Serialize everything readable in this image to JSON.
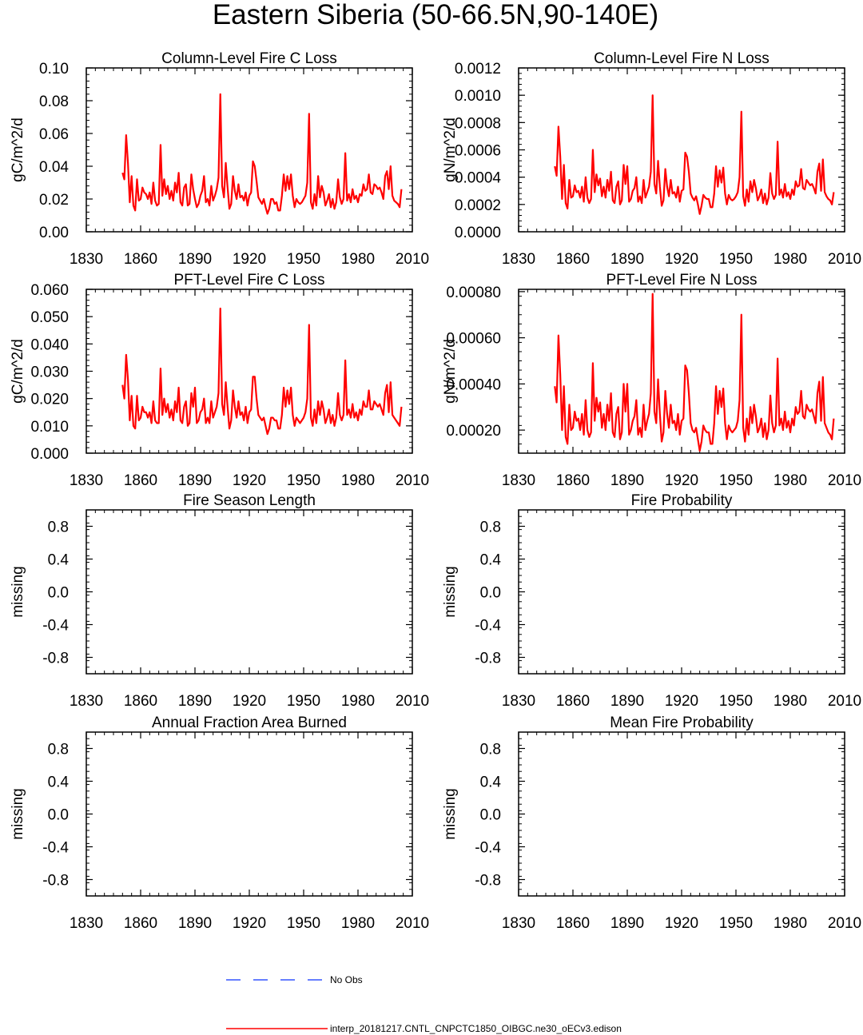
{
  "figure": {
    "title": "Eastern Siberia (50-66.5N,90-140E)"
  },
  "legend": {
    "entries": [
      {
        "label": "No Obs",
        "color": "#3355ff",
        "style": "dashed"
      },
      {
        "label": "interp_20181217.CNTL_CNPCTC1850_OIBGC.ne30_oECv3.edison",
        "color": "#ff0000",
        "style": "solid"
      }
    ]
  },
  "chart_data": [
    {
      "id": "col-c",
      "type": "line",
      "title": "Column-Level Fire C Loss",
      "ylabel": "gC/m^2/d",
      "xlabel": "",
      "xlim": [
        1830,
        2010
      ],
      "ylim": [
        0,
        0.1
      ],
      "xticks": [
        "1830",
        "1860",
        "1890",
        "1920",
        "1950",
        "1980",
        "2010"
      ],
      "yticks": [
        "0.00",
        "0.02",
        "0.04",
        "0.06",
        "0.08",
        "0.10"
      ],
      "series": [
        {
          "name": "interp_20181217.CNTL_CNPCTC1850_OIBGC.ne30_oECv3.edison",
          "color": "#ff0000",
          "x_start": 1850,
          "x_step": 1,
          "values": [
            0.036,
            0.032,
            0.059,
            0.042,
            0.018,
            0.034,
            0.016,
            0.013,
            0.032,
            0.019,
            0.02,
            0.027,
            0.024,
            0.023,
            0.02,
            0.024,
            0.017,
            0.03,
            0.019,
            0.016,
            0.017,
            0.053,
            0.022,
            0.032,
            0.023,
            0.028,
            0.02,
            0.025,
            0.019,
            0.03,
            0.024,
            0.036,
            0.018,
            0.016,
            0.027,
            0.029,
            0.016,
            0.017,
            0.035,
            0.026,
            0.02,
            0.015,
            0.017,
            0.022,
            0.025,
            0.034,
            0.018,
            0.02,
            0.016,
            0.028,
            0.019,
            0.022,
            0.026,
            0.033,
            0.084,
            0.028,
            0.021,
            0.042,
            0.027,
            0.014,
            0.017,
            0.034,
            0.025,
            0.02,
            0.029,
            0.021,
            0.022,
            0.019,
            0.024,
            0.016,
            0.022,
            0.024,
            0.043,
            0.04,
            0.031,
            0.021,
            0.019,
            0.017,
            0.02,
            0.015,
            0.011,
            0.014,
            0.02,
            0.02,
            0.017,
            0.018,
            0.013,
            0.013,
            0.022,
            0.035,
            0.025,
            0.034,
            0.026,
            0.035,
            0.022,
            0.015,
            0.02,
            0.018,
            0.017,
            0.018,
            0.02,
            0.022,
            0.03,
            0.072,
            0.018,
            0.014,
            0.023,
            0.016,
            0.034,
            0.021,
            0.028,
            0.024,
            0.016,
            0.019,
            0.023,
            0.015,
            0.02,
            0.014,
            0.018,
            0.032,
            0.021,
            0.017,
            0.02,
            0.048,
            0.019,
            0.023,
            0.018,
            0.026,
            0.02,
            0.022,
            0.018,
            0.023,
            0.022,
            0.029,
            0.025,
            0.026,
            0.035,
            0.024,
            0.023,
            0.029,
            0.028,
            0.026,
            0.027,
            0.024,
            0.02,
            0.034,
            0.037,
            0.026,
            0.04,
            0.022,
            0.019,
            0.018,
            0.017,
            0.015,
            0.026
          ]
        }
      ]
    },
    {
      "id": "col-n",
      "type": "line",
      "title": "Column-Level Fire N Loss",
      "ylabel": "gN/m^2/d",
      "xlabel": "",
      "xlim": [
        1830,
        2010
      ],
      "ylim": [
        0,
        0.0012
      ],
      "xticks": [
        "1830",
        "1860",
        "1890",
        "1920",
        "1950",
        "1980",
        "2010"
      ],
      "yticks": [
        "0.0000",
        "0.0002",
        "0.0004",
        "0.0006",
        "0.0008",
        "0.0010",
        "0.0012"
      ],
      "series": [
        {
          "name": "interp_20181217.CNTL_CNPCTC1850_OIBGC.ne30_oECv3.edison",
          "color": "#ff0000",
          "x_start": 1850,
          "x_step": 1,
          "values": [
            0.00048,
            0.00041,
            0.00077,
            0.00055,
            0.00024,
            0.00049,
            0.00021,
            0.00017,
            0.00038,
            0.00025,
            0.00026,
            0.00034,
            0.00029,
            0.0003,
            0.00025,
            0.00033,
            0.00022,
            0.0004,
            0.00025,
            0.00021,
            0.00024,
            0.0006,
            0.00029,
            0.00042,
            0.00034,
            0.00039,
            0.00026,
            0.00033,
            0.00025,
            0.00038,
            0.0003,
            0.00044,
            0.00023,
            0.00021,
            0.00033,
            0.00037,
            0.0002,
            0.00023,
            0.00049,
            0.00035,
            0.00048,
            0.00022,
            0.00024,
            0.0003,
            0.00032,
            0.0004,
            0.00022,
            0.00026,
            0.00021,
            0.00038,
            0.00025,
            0.00029,
            0.00033,
            0.00044,
            0.001,
            0.00035,
            0.00028,
            0.00052,
            0.00033,
            0.00019,
            0.00023,
            0.00046,
            0.00033,
            0.00026,
            0.00038,
            0.00028,
            0.00029,
            0.00025,
            0.00033,
            0.00022,
            0.0003,
            0.00031,
            0.00058,
            0.00055,
            0.00044,
            0.00028,
            0.00025,
            0.00023,
            0.00026,
            0.0002,
            0.00013,
            0.00019,
            0.00027,
            0.00025,
            0.00024,
            0.00024,
            0.00018,
            0.00018,
            0.00028,
            0.00048,
            0.00033,
            0.00045,
            0.00036,
            0.00047,
            0.00028,
            0.0002,
            0.00027,
            0.00024,
            0.00023,
            0.00024,
            0.00026,
            0.00029,
            0.0004,
            0.00088,
            0.00026,
            0.00019,
            0.00031,
            0.00022,
            0.00037,
            0.00029,
            0.00038,
            0.00032,
            0.00023,
            0.00026,
            0.00031,
            0.00021,
            0.00028,
            0.0002,
            0.00025,
            0.00043,
            0.00028,
            0.00024,
            0.00027,
            0.00066,
            0.00027,
            0.00031,
            0.00025,
            0.00035,
            0.00026,
            0.00029,
            0.00024,
            0.00031,
            0.00027,
            0.00037,
            0.00033,
            0.00034,
            0.00046,
            0.00032,
            0.00031,
            0.00038,
            0.00036,
            0.00034,
            0.00035,
            0.00032,
            0.00028,
            0.00044,
            0.0005,
            0.0003,
            0.00053,
            0.00029,
            0.00026,
            0.00024,
            0.00023,
            0.0002,
            0.00029
          ]
        }
      ]
    },
    {
      "id": "pft-c",
      "type": "line",
      "title": "PFT-Level Fire C Loss",
      "ylabel": "gC/m^2/d",
      "xlabel": "",
      "xlim": [
        1830,
        2010
      ],
      "ylim": [
        0,
        0.06
      ],
      "xticks": [
        "1830",
        "1860",
        "1890",
        "1920",
        "1950",
        "1980",
        "2010"
      ],
      "yticks": [
        "0.000",
        "0.010",
        "0.020",
        "0.030",
        "0.040",
        "0.050",
        "0.060"
      ],
      "series": [
        {
          "name": "interp_20181217.CNTL_CNPCTC1850_OIBGC.ne30_oECv3.edison",
          "color": "#ff0000",
          "x_start": 1850,
          "x_step": 1,
          "values": [
            0.025,
            0.02,
            0.036,
            0.027,
            0.012,
            0.021,
            0.01,
            0.009,
            0.021,
            0.012,
            0.013,
            0.017,
            0.015,
            0.015,
            0.013,
            0.015,
            0.011,
            0.019,
            0.012,
            0.011,
            0.011,
            0.031,
            0.014,
            0.02,
            0.015,
            0.018,
            0.013,
            0.016,
            0.012,
            0.019,
            0.015,
            0.024,
            0.012,
            0.011,
            0.017,
            0.019,
            0.01,
            0.011,
            0.022,
            0.017,
            0.024,
            0.011,
            0.012,
            0.015,
            0.016,
            0.02,
            0.011,
            0.013,
            0.011,
            0.019,
            0.013,
            0.015,
            0.017,
            0.022,
            0.053,
            0.018,
            0.014,
            0.026,
            0.017,
            0.009,
            0.012,
            0.023,
            0.017,
            0.013,
            0.019,
            0.014,
            0.015,
            0.012,
            0.017,
            0.011,
            0.015,
            0.016,
            0.028,
            0.028,
            0.02,
            0.014,
            0.013,
            0.012,
            0.013,
            0.01,
            0.007,
            0.009,
            0.013,
            0.013,
            0.012,
            0.012,
            0.009,
            0.009,
            0.014,
            0.024,
            0.017,
            0.023,
            0.018,
            0.024,
            0.014,
            0.01,
            0.013,
            0.012,
            0.011,
            0.012,
            0.013,
            0.015,
            0.02,
            0.047,
            0.013,
            0.01,
            0.016,
            0.011,
            0.019,
            0.014,
            0.019,
            0.016,
            0.011,
            0.013,
            0.016,
            0.011,
            0.014,
            0.01,
            0.013,
            0.022,
            0.014,
            0.012,
            0.014,
            0.034,
            0.014,
            0.016,
            0.013,
            0.018,
            0.013,
            0.015,
            0.012,
            0.016,
            0.014,
            0.019,
            0.017,
            0.017,
            0.023,
            0.016,
            0.016,
            0.019,
            0.018,
            0.017,
            0.018,
            0.016,
            0.014,
            0.022,
            0.025,
            0.015,
            0.026,
            0.014,
            0.013,
            0.012,
            0.011,
            0.01,
            0.017
          ]
        }
      ]
    },
    {
      "id": "pft-n",
      "type": "line",
      "title": "PFT-Level Fire N Loss",
      "ylabel": "gN/m^2/d",
      "xlabel": "",
      "xlim": [
        1830,
        2010
      ],
      "ylim": [
        0.0001,
        0.00081
      ],
      "xticks": [
        "1830",
        "1860",
        "1890",
        "1920",
        "1950",
        "1980",
        "2010"
      ],
      "ytick_values": [
        0.0002,
        0.0004,
        0.0006,
        0.0008
      ],
      "yticks": [
        "0.00020",
        "0.00040",
        "0.00060",
        "0.00080"
      ],
      "series": [
        {
          "name": "interp_20181217.CNTL_CNPCTC1850_OIBGC.ne30_oECv3.edison",
          "color": "#ff0000",
          "x_start": 1850,
          "x_step": 1,
          "values": [
            0.00039,
            0.00032,
            0.00061,
            0.00044,
            0.0002,
            0.00039,
            0.00017,
            0.00014,
            0.00031,
            0.0002,
            0.00021,
            0.00028,
            0.00024,
            0.00025,
            0.0002,
            0.00027,
            0.00018,
            0.00033,
            0.0002,
            0.00017,
            0.00019,
            0.00049,
            0.00024,
            0.00034,
            0.00028,
            0.00032,
            0.00021,
            0.00027,
            0.0002,
            0.00031,
            0.00024,
            0.00036,
            0.00019,
            0.00017,
            0.00027,
            0.0003,
            0.00016,
            0.00019,
            0.0004,
            0.00028,
            0.0004,
            0.00018,
            0.0002,
            0.00024,
            0.00026,
            0.00033,
            0.00018,
            0.00021,
            0.00017,
            0.00031,
            0.0002,
            0.00024,
            0.00027,
            0.00036,
            0.00079,
            0.00028,
            0.00023,
            0.00042,
            0.00027,
            0.00015,
            0.00019,
            0.00037,
            0.00027,
            0.00021,
            0.00031,
            0.00023,
            0.00024,
            0.0002,
            0.00027,
            0.00018,
            0.00024,
            0.00025,
            0.00048,
            0.00046,
            0.00036,
            0.00023,
            0.0002,
            0.00019,
            0.00021,
            0.00016,
            0.00011,
            0.00015,
            0.00022,
            0.0002,
            0.00019,
            0.00019,
            0.00014,
            0.00014,
            0.00023,
            0.00039,
            0.00027,
            0.00037,
            0.0003,
            0.00038,
            0.00023,
            0.00016,
            0.00022,
            0.0002,
            0.00019,
            0.0002,
            0.00021,
            0.00024,
            0.00033,
            0.0007,
            0.00021,
            0.00015,
            0.00025,
            0.00018,
            0.0003,
            0.00023,
            0.00031,
            0.00026,
            0.00019,
            0.00021,
            0.00025,
            0.00017,
            0.00023,
            0.00016,
            0.0002,
            0.00035,
            0.00023,
            0.00019,
            0.00022,
            0.00051,
            0.00022,
            0.00025,
            0.0002,
            0.00028,
            0.00021,
            0.00024,
            0.00019,
            0.00025,
            0.00022,
            0.0003,
            0.00027,
            0.00028,
            0.00037,
            0.00026,
            0.00025,
            0.00031,
            0.00029,
            0.00028,
            0.00029,
            0.00026,
            0.00023,
            0.00036,
            0.00041,
            0.00024,
            0.00043,
            0.00023,
            0.00021,
            0.00019,
            0.00018,
            0.00016,
            0.00025
          ]
        }
      ]
    },
    {
      "id": "fsl",
      "type": "line",
      "title": "Fire Season Length",
      "ylabel": "missing",
      "xlabel": "",
      "xlim": [
        1830,
        2010
      ],
      "ylim": [
        -1,
        1
      ],
      "xticks": [
        "1830",
        "1860",
        "1890",
        "1920",
        "1950",
        "1980",
        "2010"
      ],
      "ytick_values": [
        0.8,
        0.4,
        0.0,
        -0.4,
        -0.8
      ],
      "yticks": [
        "0.8",
        "0.4",
        "0.0",
        "-0.4",
        "-0.8"
      ],
      "series": []
    },
    {
      "id": "fp",
      "type": "line",
      "title": "Fire Probability",
      "ylabel": "missing",
      "xlabel": "",
      "xlim": [
        1830,
        2010
      ],
      "ylim": [
        -1,
        1
      ],
      "xticks": [
        "1830",
        "1860",
        "1890",
        "1920",
        "1950",
        "1980",
        "2010"
      ],
      "ytick_values": [
        0.8,
        0.4,
        0.0,
        -0.4,
        -0.8
      ],
      "yticks": [
        "0.8",
        "0.4",
        "0.0",
        "-0.4",
        "-0.8"
      ],
      "series": []
    },
    {
      "id": "afab",
      "type": "line",
      "title": "Annual Fraction Area Burned",
      "ylabel": "missing",
      "xlabel": "",
      "xlim": [
        1830,
        2010
      ],
      "ylim": [
        -1,
        1
      ],
      "xticks": [
        "1830",
        "1860",
        "1890",
        "1920",
        "1950",
        "1980",
        "2010"
      ],
      "ytick_values": [
        0.8,
        0.4,
        0.0,
        -0.4,
        -0.8
      ],
      "yticks": [
        "0.8",
        "0.4",
        "0.0",
        "-0.4",
        "-0.8"
      ],
      "series": []
    },
    {
      "id": "mfp",
      "type": "line",
      "title": "Mean Fire Probability",
      "ylabel": "missing",
      "xlabel": "",
      "xlim": [
        1830,
        2010
      ],
      "ylim": [
        -1,
        1
      ],
      "xticks": [
        "1830",
        "1860",
        "1890",
        "1920",
        "1950",
        "1980",
        "2010"
      ],
      "ytick_values": [
        0.8,
        0.4,
        0.0,
        -0.4,
        -0.8
      ],
      "yticks": [
        "0.8",
        "0.4",
        "0.0",
        "-0.4",
        "-0.8"
      ],
      "series": []
    }
  ]
}
